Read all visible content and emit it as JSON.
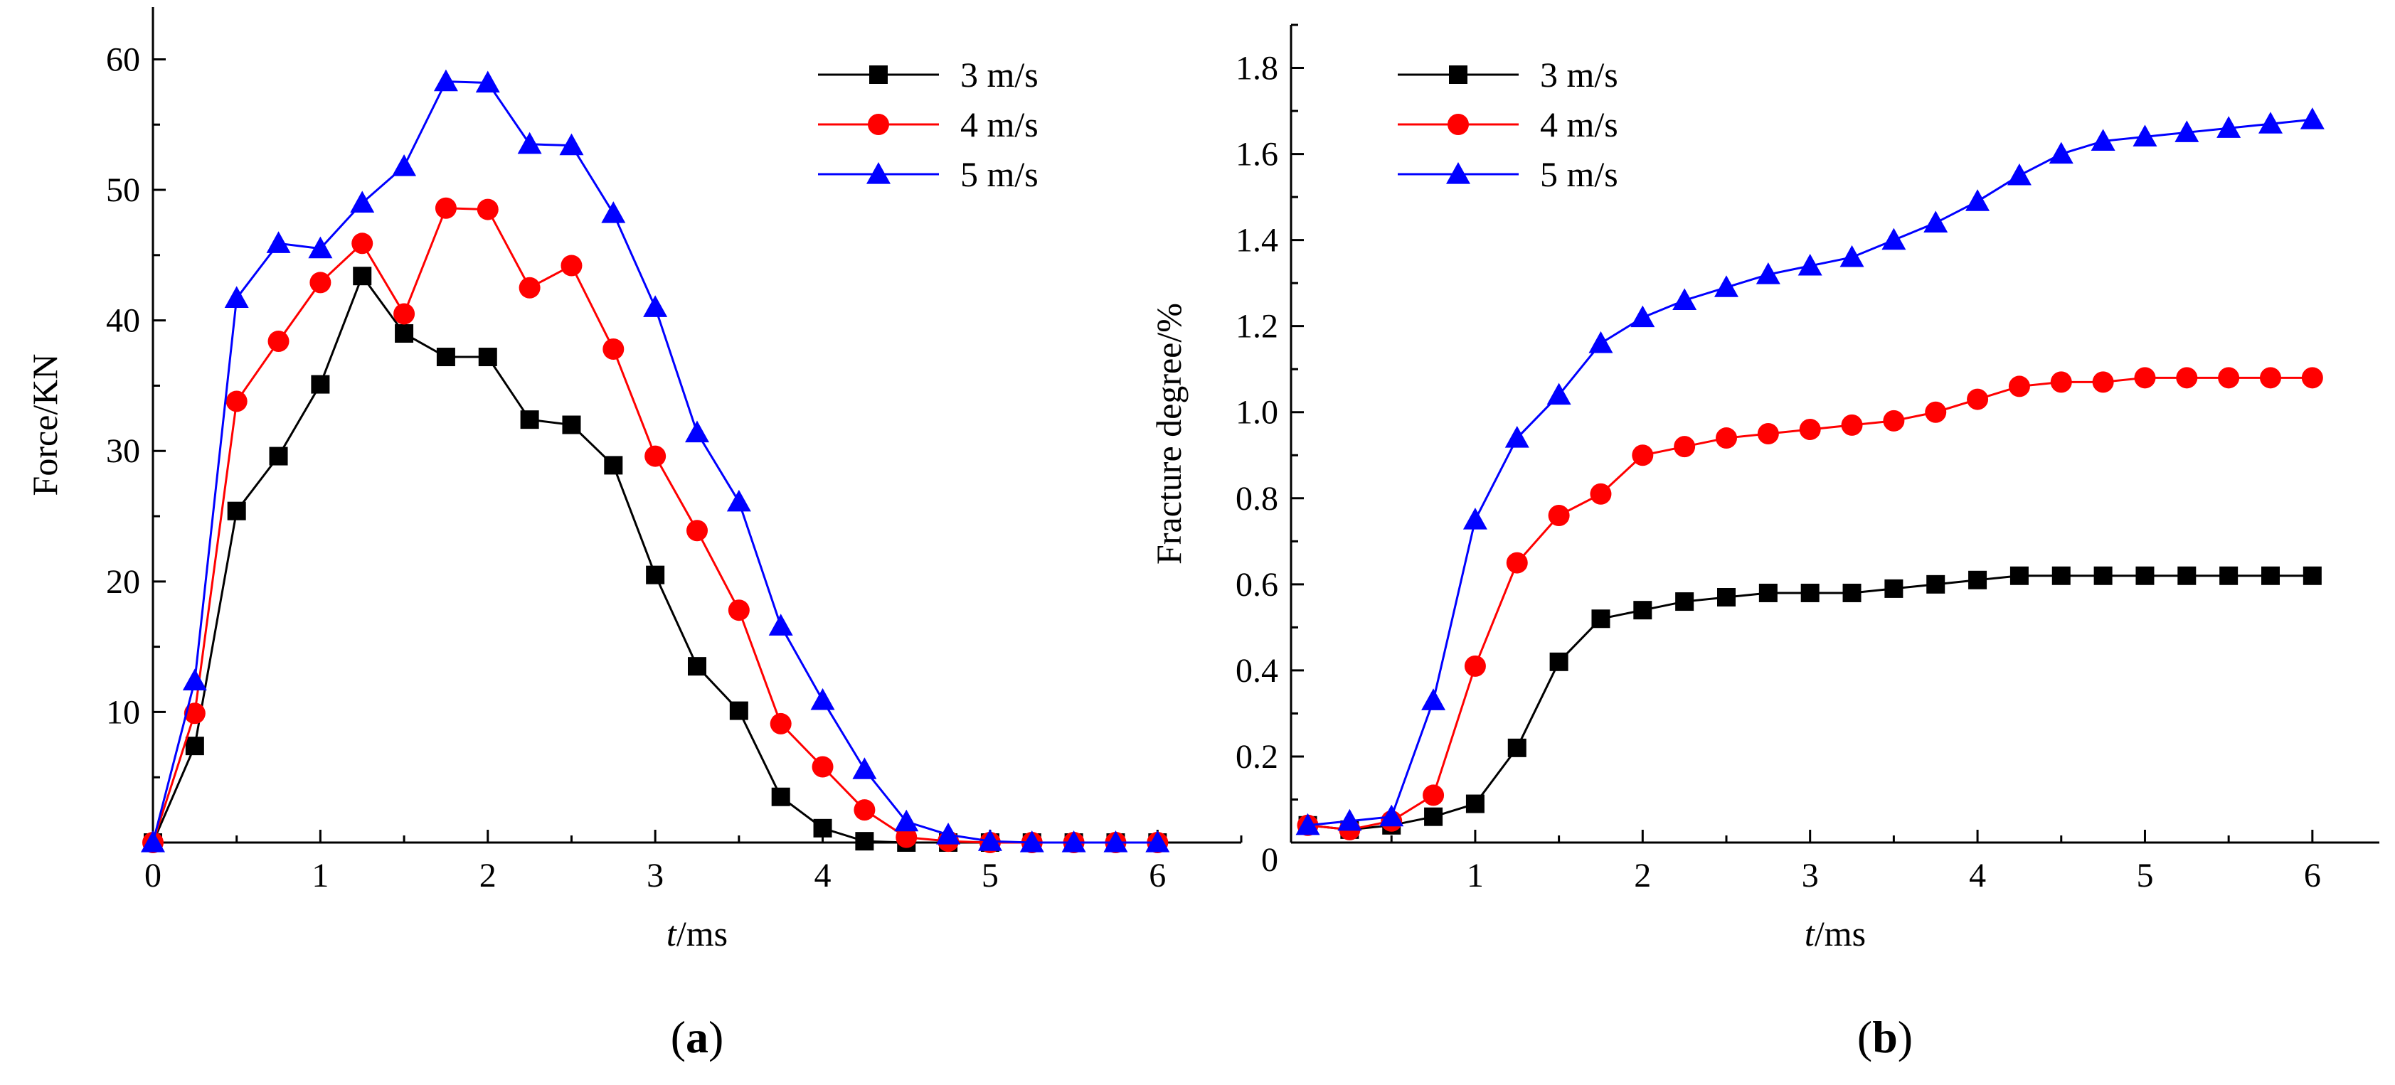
{
  "chart_data": [
    {
      "type": "line",
      "panel_label": "a",
      "xlabel_italic": "t",
      "xlabel_unit": "/ms",
      "ylabel": "Force/KN",
      "xlim": [
        0,
        6.5
      ],
      "ylim": [
        0,
        64
      ],
      "xticks": [
        0,
        1,
        2,
        3,
        4,
        5,
        6
      ],
      "yticks": [
        10,
        20,
        30,
        40,
        50,
        60
      ],
      "legend_position": "top-right",
      "x": [
        0,
        0.25,
        0.5,
        0.75,
        1,
        1.25,
        1.5,
        1.75,
        2,
        2.25,
        2.5,
        2.75,
        3,
        3.25,
        3.5,
        3.75,
        4,
        4.25,
        4.5,
        4.75,
        5,
        5.25,
        5.5,
        5.75,
        6
      ],
      "series": [
        {
          "name": "3 m/s",
          "color": "#000000",
          "marker": "square",
          "values": [
            0,
            7.4,
            25.4,
            29.6,
            35.1,
            43.4,
            39.0,
            37.2,
            37.2,
            32.4,
            32.0,
            28.9,
            20.5,
            13.5,
            10.1,
            3.5,
            1.1,
            0.1,
            0,
            0,
            0,
            0,
            0,
            0,
            0
          ]
        },
        {
          "name": "4 m/s",
          "color": "#ff0000",
          "marker": "circle",
          "values": [
            0,
            9.9,
            33.8,
            38.4,
            42.9,
            45.9,
            40.5,
            48.6,
            48.5,
            42.5,
            44.2,
            37.8,
            29.6,
            23.9,
            17.8,
            9.1,
            5.8,
            2.5,
            0.4,
            0.1,
            0,
            0,
            0,
            0,
            0
          ]
        },
        {
          "name": "5 m/s",
          "color": "#0000ff",
          "marker": "triangle",
          "values": [
            0,
            12.4,
            41.7,
            45.9,
            45.5,
            49.0,
            51.8,
            58.3,
            58.2,
            53.5,
            53.4,
            48.2,
            41.0,
            31.4,
            26.1,
            16.6,
            10.9,
            5.6,
            1.6,
            0.6,
            0.1,
            0,
            0,
            0,
            0
          ]
        }
      ]
    },
    {
      "type": "line",
      "panel_label": "b",
      "xlabel_italic": "t",
      "xlabel_unit": "/ms",
      "ylabel": "Fracture degree/%",
      "xlim": [
        -0.1,
        6.4
      ],
      "ylim": [
        0,
        1.9
      ],
      "xticks": [
        1,
        2,
        3,
        4,
        5,
        6
      ],
      "yticks": [
        0.2,
        0.4,
        0.6,
        0.8,
        1.0,
        1.2,
        1.4,
        1.6,
        1.8
      ],
      "origin_label": "0",
      "legend_position": "top-left",
      "x": [
        0,
        0.25,
        0.5,
        0.75,
        1,
        1.25,
        1.5,
        1.75,
        2,
        2.25,
        2.5,
        2.75,
        3,
        3.25,
        3.5,
        3.75,
        4,
        4.25,
        4.5,
        4.75,
        5,
        5.25,
        5.5,
        5.75,
        6
      ],
      "series": [
        {
          "name": "3 m/s",
          "color": "#000000",
          "marker": "square",
          "values": [
            0.04,
            0.03,
            0.04,
            0.06,
            0.09,
            0.22,
            0.42,
            0.52,
            0.54,
            0.56,
            0.57,
            0.58,
            0.58,
            0.58,
            0.59,
            0.6,
            0.61,
            0.62,
            0.62,
            0.62,
            0.62,
            0.62,
            0.62,
            0.62,
            0.62
          ]
        },
        {
          "name": "4 m/s",
          "color": "#ff0000",
          "marker": "circle",
          "values": [
            0.04,
            0.03,
            0.05,
            0.11,
            0.41,
            0.65,
            0.76,
            0.81,
            0.9,
            0.92,
            0.94,
            0.95,
            0.96,
            0.97,
            0.98,
            1.0,
            1.03,
            1.06,
            1.07,
            1.07,
            1.08,
            1.08,
            1.08,
            1.08,
            1.08
          ]
        },
        {
          "name": "5 m/s",
          "color": "#0000ff",
          "marker": "triangle",
          "values": [
            0.04,
            0.05,
            0.06,
            0.33,
            0.75,
            0.94,
            1.04,
            1.16,
            1.22,
            1.26,
            1.29,
            1.32,
            1.34,
            1.36,
            1.4,
            1.44,
            1.49,
            1.55,
            1.6,
            1.63,
            1.64,
            1.65,
            1.66,
            1.67,
            1.68
          ]
        }
      ]
    }
  ]
}
